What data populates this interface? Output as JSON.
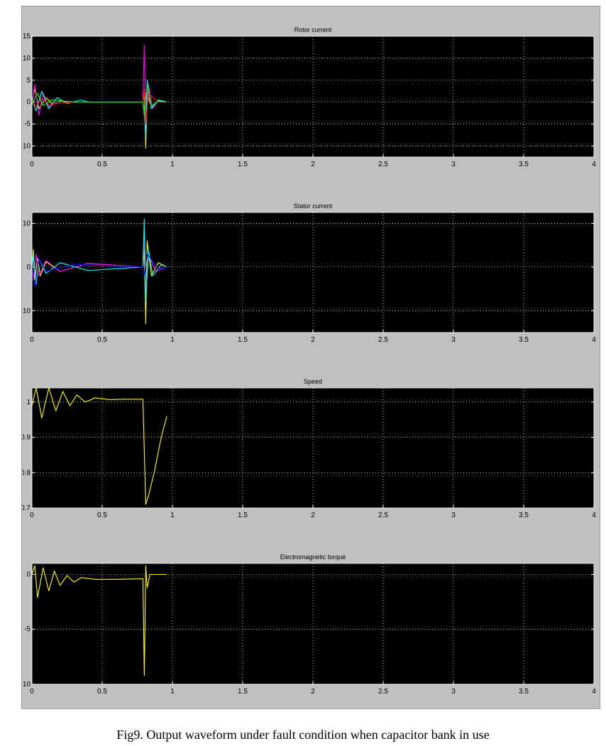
{
  "caption": "Fig9. Output waveform under fault condition when capacitor bank in use",
  "colors": {
    "background": "#c0c0c0",
    "axes_background": "#000000",
    "grid": "#ffffff",
    "series": [
      "#ffff00",
      "#ff00ff",
      "#00ffff",
      "#ff0000",
      "#00ff00",
      "#0000ff"
    ]
  },
  "chart_data": [
    {
      "type": "line",
      "title": "Rotor current",
      "xlim": [
        0,
        4
      ],
      "ylim": [
        -12.5,
        15
      ],
      "xticks": [
        0,
        0.5,
        1,
        1.5,
        2,
        2.5,
        3,
        3.5,
        4
      ],
      "xtick_labels": [
        "0",
        "0.5",
        "1",
        "1.5",
        "2",
        "2.5",
        "3",
        "3.5",
        "4"
      ],
      "yticks": [
        -10,
        -5,
        0,
        5,
        10,
        15
      ],
      "ytick_labels": [
        "-10",
        "-5",
        "0",
        "5",
        "10",
        "15"
      ],
      "grid": "dotted",
      "series": [
        {
          "color": "#ffff00",
          "points": [
            [
              0,
              0
            ],
            [
              0.02,
              3
            ],
            [
              0.05,
              -1.5
            ],
            [
              0.1,
              1
            ],
            [
              0.15,
              -0.5
            ],
            [
              0.2,
              0.2
            ],
            [
              0.3,
              0
            ],
            [
              0.79,
              0
            ],
            [
              0.8,
              2
            ],
            [
              0.81,
              -10.5
            ],
            [
              0.82,
              2
            ],
            [
              0.85,
              -1
            ],
            [
              0.9,
              0.3
            ],
            [
              0.96,
              0
            ]
          ]
        },
        {
          "color": "#ff00ff",
          "points": [
            [
              0,
              -1
            ],
            [
              0.02,
              4
            ],
            [
              0.05,
              -3
            ],
            [
              0.08,
              2
            ],
            [
              0.12,
              -1
            ],
            [
              0.2,
              0.3
            ],
            [
              0.3,
              0
            ],
            [
              0.79,
              0
            ],
            [
              0.8,
              13
            ],
            [
              0.81,
              -4
            ],
            [
              0.83,
              4
            ],
            [
              0.86,
              -1.5
            ],
            [
              0.9,
              0.5
            ],
            [
              0.96,
              0
            ]
          ]
        },
        {
          "color": "#00ffff",
          "points": [
            [
              0,
              1
            ],
            [
              0.03,
              -2
            ],
            [
              0.07,
              2.5
            ],
            [
              0.12,
              -1.5
            ],
            [
              0.18,
              1
            ],
            [
              0.25,
              -0.3
            ],
            [
              0.35,
              0.5
            ],
            [
              0.4,
              0
            ],
            [
              0.79,
              0
            ],
            [
              0.8,
              -2
            ],
            [
              0.81,
              -8
            ],
            [
              0.82,
              5
            ],
            [
              0.85,
              -1.5
            ],
            [
              0.9,
              0.5
            ],
            [
              0.96,
              0
            ]
          ]
        },
        {
          "color": "#ff0000",
          "points": [
            [
              0,
              0.5
            ],
            [
              0.03,
              -1
            ],
            [
              0.07,
              1
            ],
            [
              0.12,
              -0.5
            ],
            [
              0.3,
              0
            ],
            [
              0.79,
              0
            ],
            [
              0.8,
              3
            ],
            [
              0.81,
              -5
            ],
            [
              0.83,
              2
            ],
            [
              0.9,
              0
            ],
            [
              0.96,
              0
            ]
          ]
        },
        {
          "color": "#00ff00",
          "points": [
            [
              0,
              -0.5
            ],
            [
              0.04,
              2
            ],
            [
              0.08,
              -0.8
            ],
            [
              0.14,
              0.5
            ],
            [
              0.3,
              0
            ],
            [
              0.79,
              0
            ],
            [
              0.8,
              -3
            ],
            [
              0.82,
              4
            ],
            [
              0.85,
              -1
            ],
            [
              0.9,
              0.2
            ],
            [
              0.96,
              0
            ]
          ]
        }
      ]
    },
    {
      "type": "line",
      "title": "Stator current",
      "xlim": [
        0,
        4
      ],
      "ylim": [
        -15,
        12.5
      ],
      "xticks": [
        0,
        0.5,
        1,
        1.5,
        2,
        2.5,
        3,
        3.5,
        4
      ],
      "xtick_labels": [
        "0",
        "0.5",
        "1",
        "1.5",
        "2",
        "2.5",
        "3",
        "3.5",
        "4"
      ],
      "yticks": [
        -10,
        0,
        10
      ],
      "ytick_labels": [
        "-10",
        "0",
        "10"
      ],
      "grid": "dotted",
      "series": [
        {
          "color": "#ffff00",
          "points": [
            [
              0,
              0
            ],
            [
              0.01,
              4
            ],
            [
              0.02,
              -3
            ],
            [
              0.04,
              2
            ],
            [
              0.06,
              -2
            ],
            [
              0.1,
              1.2
            ],
            [
              0.2,
              -1
            ],
            [
              0.4,
              0.8
            ],
            [
              0.79,
              0
            ],
            [
              0.8,
              4
            ],
            [
              0.81,
              -13
            ],
            [
              0.82,
              6
            ],
            [
              0.85,
              -2
            ],
            [
              0.9,
              1
            ],
            [
              0.96,
              0
            ]
          ]
        },
        {
          "color": "#ff00ff",
          "points": [
            [
              0,
              1
            ],
            [
              0.01,
              -3
            ],
            [
              0.03,
              3
            ],
            [
              0.05,
              -2
            ],
            [
              0.1,
              1.5
            ],
            [
              0.2,
              -1
            ],
            [
              0.4,
              0.8
            ],
            [
              0.79,
              0
            ],
            [
              0.8,
              7
            ],
            [
              0.81,
              -6
            ],
            [
              0.83,
              3
            ],
            [
              0.88,
              -1
            ],
            [
              0.96,
              0
            ]
          ]
        },
        {
          "color": "#00ffff",
          "points": [
            [
              0,
              -1
            ],
            [
              0.01,
              3
            ],
            [
              0.03,
              -4
            ],
            [
              0.05,
              2
            ],
            [
              0.1,
              -1.5
            ],
            [
              0.2,
              1
            ],
            [
              0.4,
              -0.8
            ],
            [
              0.79,
              0
            ],
            [
              0.8,
              11
            ],
            [
              0.81,
              -8
            ],
            [
              0.83,
              4
            ],
            [
              0.86,
              -2
            ],
            [
              0.92,
              0.5
            ],
            [
              0.96,
              0
            ]
          ]
        },
        {
          "color": "#0000ff",
          "points": [
            [
              0,
              0.5
            ],
            [
              0.02,
              -4.5
            ],
            [
              0.05,
              2
            ],
            [
              0.1,
              -1
            ],
            [
              0.3,
              0.6
            ],
            [
              0.79,
              0
            ],
            [
              0.8,
              -2
            ],
            [
              0.82,
              3
            ],
            [
              0.9,
              -0.5
            ],
            [
              0.96,
              0
            ]
          ]
        }
      ]
    },
    {
      "type": "line",
      "title": "Speed",
      "xlim": [
        0,
        4
      ],
      "ylim": [
        0.7,
        1.04
      ],
      "xticks": [
        0,
        0.5,
        1,
        1.5,
        2,
        2.5,
        3,
        3.5,
        4
      ],
      "xtick_labels": [
        "0",
        "0.5",
        "1",
        "1.5",
        "2",
        "2.5",
        "3",
        "3.5",
        "4"
      ],
      "yticks": [
        0.7,
        0.8,
        0.9,
        1
      ],
      "ytick_labels": [
        "0.7",
        "0.8",
        "0.9",
        "1"
      ],
      "grid": "dotted",
      "series": [
        {
          "color": "#ffff00",
          "points": [
            [
              0,
              0.99
            ],
            [
              0.03,
              1.04
            ],
            [
              0.07,
              0.955
            ],
            [
              0.12,
              1.04
            ],
            [
              0.17,
              0.975
            ],
            [
              0.22,
              1.03
            ],
            [
              0.27,
              0.99
            ],
            [
              0.32,
              1.02
            ],
            [
              0.38,
              1
            ],
            [
              0.45,
              1.012
            ],
            [
              0.55,
              1.007
            ],
            [
              0.65,
              1.008
            ],
            [
              0.79,
              1.008
            ],
            [
              0.81,
              0.71
            ],
            [
              0.83,
              0.735
            ],
            [
              0.87,
              0.8
            ],
            [
              0.92,
              0.9
            ],
            [
              0.96,
              0.96
            ]
          ]
        }
      ]
    },
    {
      "type": "line",
      "title": "Electromagnetic torque",
      "xlim": [
        0,
        4
      ],
      "ylim": [
        -10,
        1
      ],
      "xticks": [
        0,
        0.5,
        1,
        1.5,
        2,
        2.5,
        3,
        3.5,
        4
      ],
      "xtick_labels": [
        "0",
        "0.5",
        "1",
        "1.5",
        "2",
        "2.5",
        "3",
        "3.5",
        "4"
      ],
      "yticks": [
        -10,
        -5,
        0
      ],
      "ytick_labels": [
        "-10",
        "-5",
        "0"
      ],
      "grid": "dotted",
      "series": [
        {
          "color": "#ffff00",
          "points": [
            [
              0,
              0
            ],
            [
              0.02,
              0.8
            ],
            [
              0.04,
              -2.1
            ],
            [
              0.08,
              0.6
            ],
            [
              0.12,
              -1.5
            ],
            [
              0.16,
              0.3
            ],
            [
              0.2,
              -1
            ],
            [
              0.25,
              -0.1
            ],
            [
              0.3,
              -0.7
            ],
            [
              0.35,
              -0.3
            ],
            [
              0.45,
              -0.45
            ],
            [
              0.6,
              -0.45
            ],
            [
              0.79,
              -0.4
            ],
            [
              0.8,
              -9.2
            ],
            [
              0.81,
              0.8
            ],
            [
              0.82,
              -1.2
            ],
            [
              0.84,
              0
            ],
            [
              0.96,
              0
            ]
          ]
        }
      ]
    }
  ]
}
